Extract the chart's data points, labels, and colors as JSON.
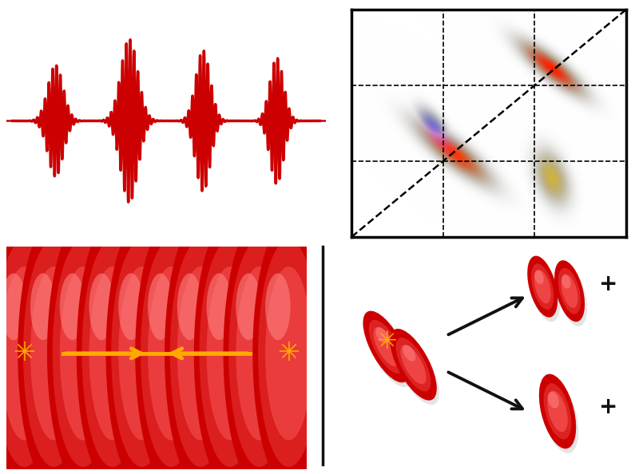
{
  "bg_color": "#ffffff",
  "pulse_color": "#cc0000",
  "pulse_lw": 2.5,
  "ellipse_red": "#dd0000",
  "ellipse_dark": "#990000",
  "ellipse_light": "#ff4444",
  "star_color": "#ffaa00",
  "arrow_yellow": "#ffaa00",
  "arrow_black": "#111111",
  "plus_color": "#111111",
  "divider_color": "#111111",
  "n_ellipses_chain": 10,
  "chain_ew": 0.12,
  "chain_eh": 0.6
}
